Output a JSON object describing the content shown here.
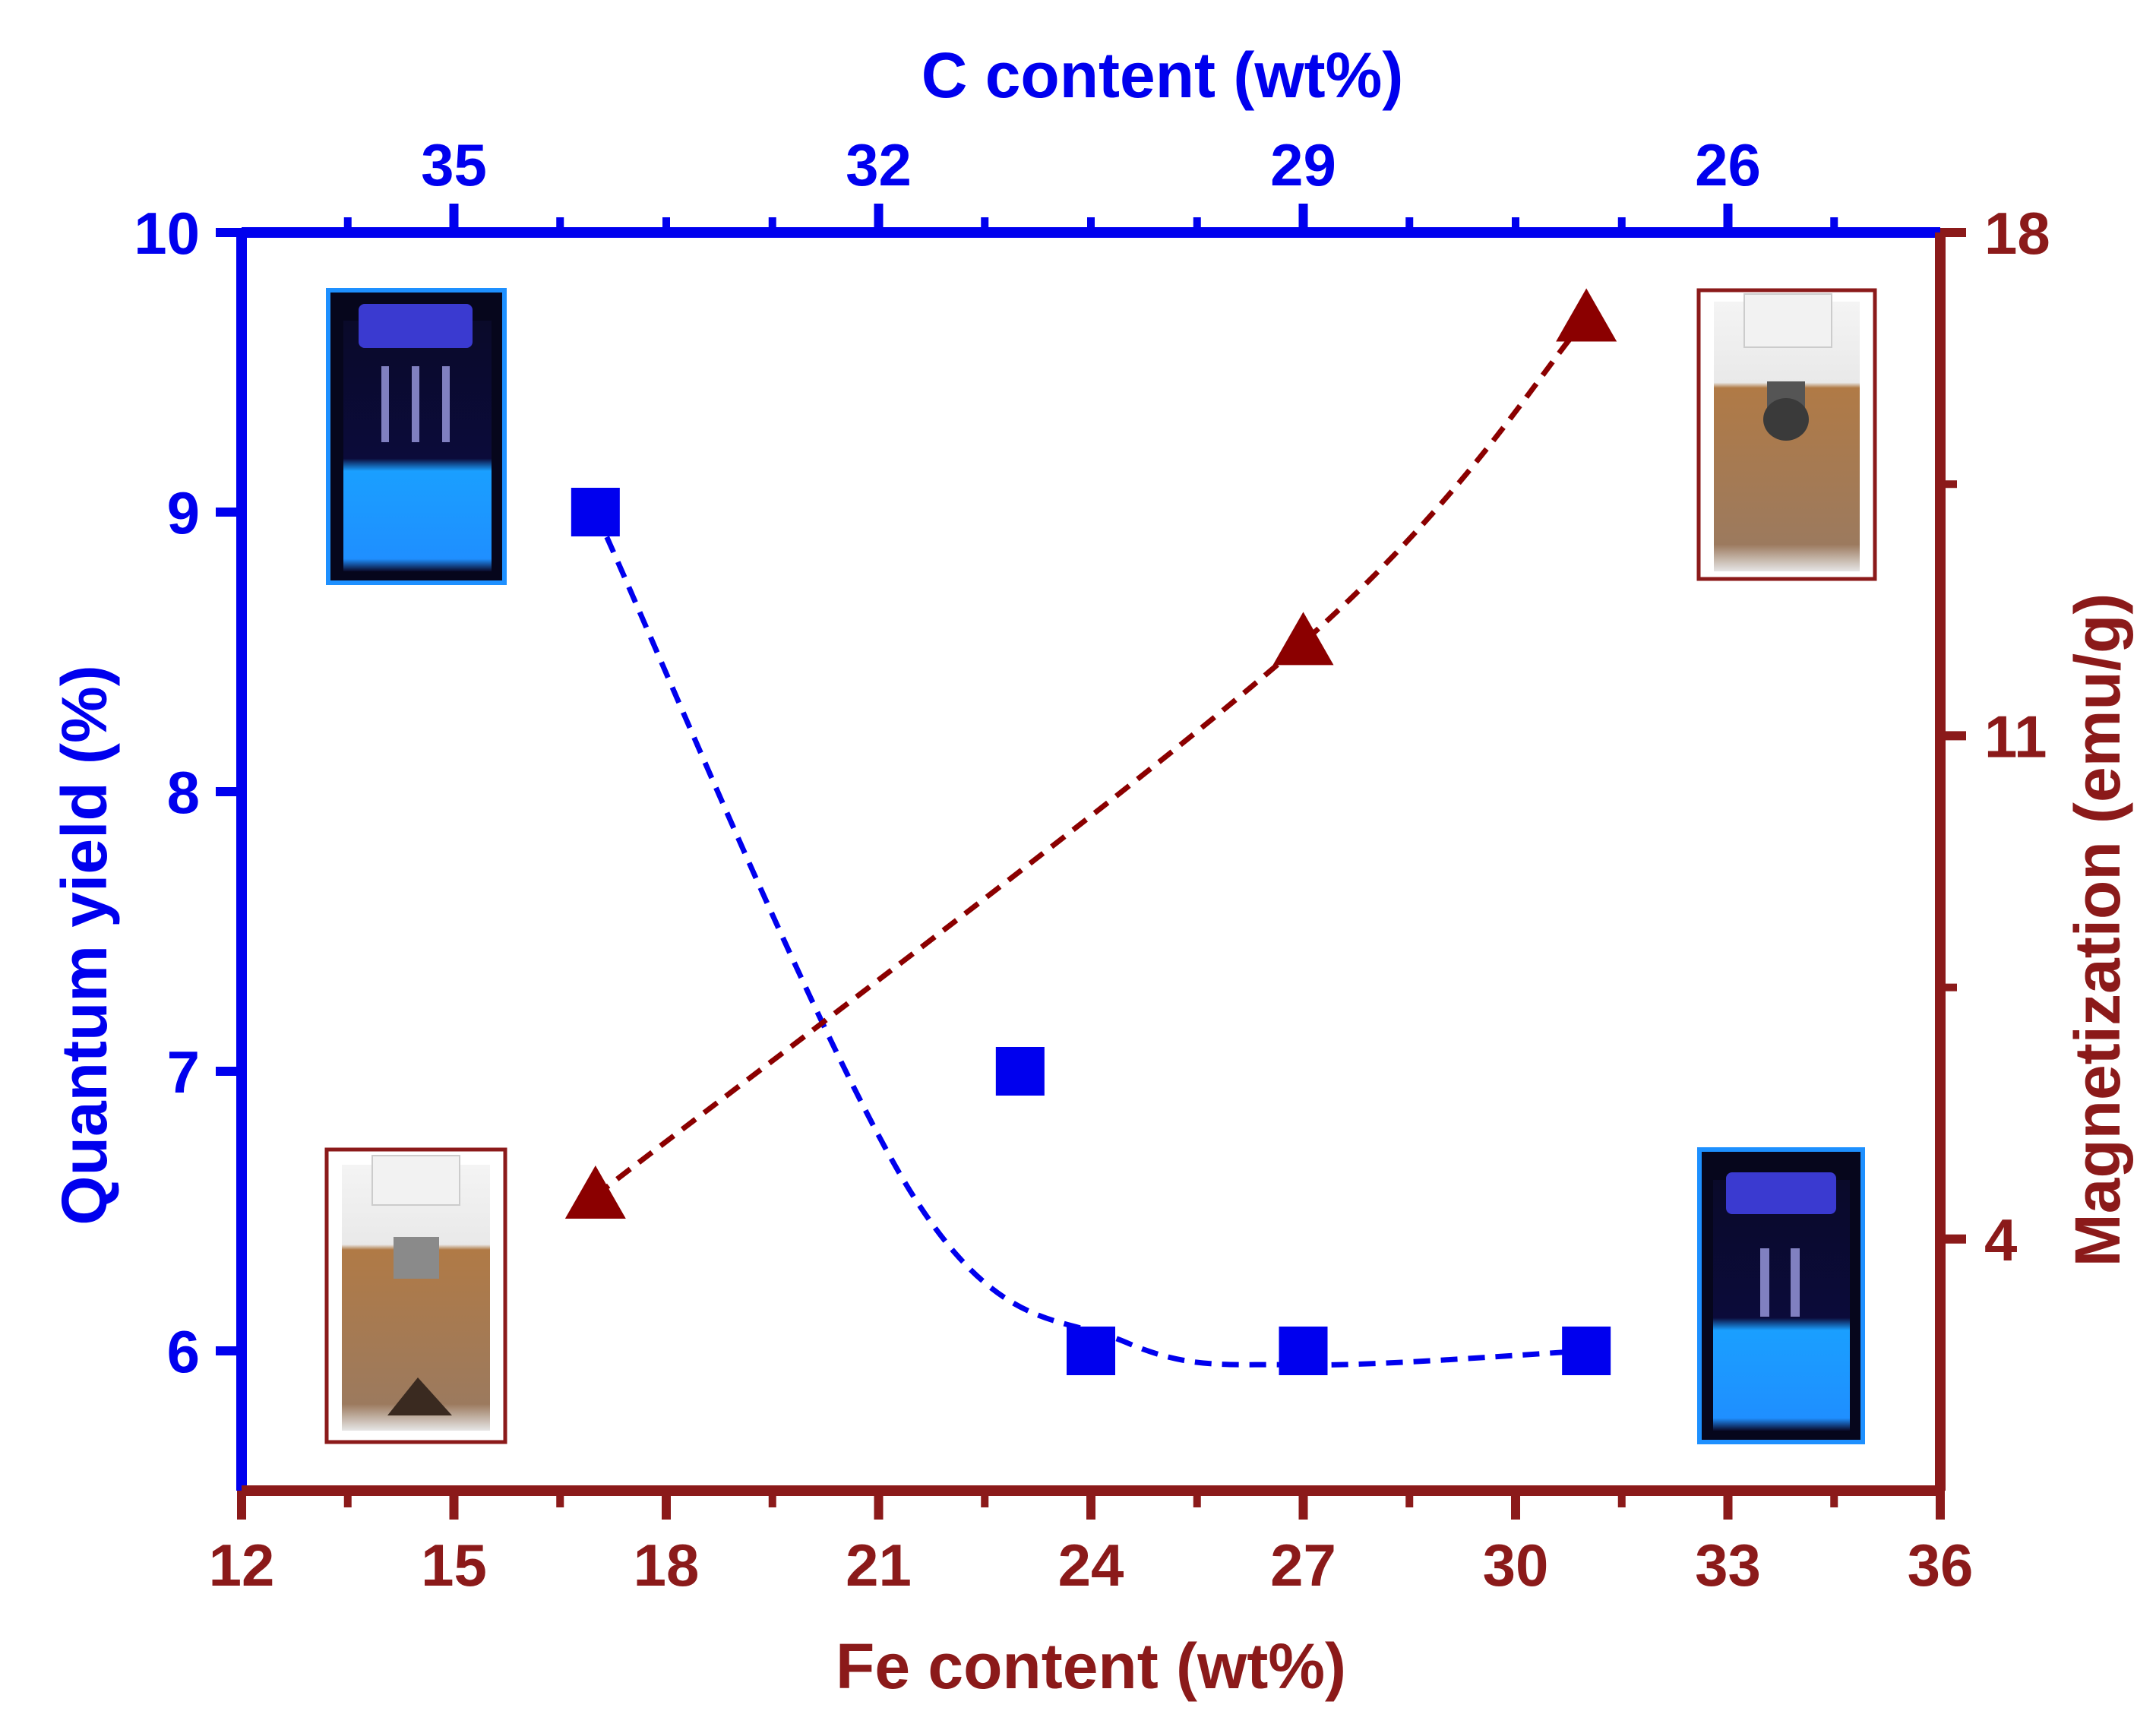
{
  "chart_data": {
    "type": "scatter",
    "x_axis": {
      "label": "Fe content (wt%)",
      "range": [
        12,
        36
      ],
      "ticks": [
        12,
        15,
        18,
        21,
        24,
        27,
        30,
        33,
        36
      ],
      "tick_labels": [
        "12",
        "15",
        "18",
        "21",
        "24",
        "27",
        "30",
        "33",
        "36"
      ]
    },
    "top_axis": {
      "label": "C content (wt%)",
      "ticks": [
        35,
        32,
        29,
        26
      ],
      "tick_labels": [
        "35",
        "32",
        "29",
        "26"
      ],
      "tick_fe_positions": [
        15,
        21,
        27,
        33
      ]
    },
    "y_left": {
      "label": "Quantum yield (%)",
      "range": [
        5.5,
        10
      ],
      "ticks": [
        6,
        7,
        8,
        9,
        10
      ],
      "tick_labels": [
        "6",
        "7",
        "8",
        "9",
        "10"
      ]
    },
    "y_right": {
      "label": "Magnetization (emu/g)",
      "range": [
        0.5,
        18
      ],
      "ticks": [
        4,
        11,
        18
      ],
      "tick_labels": [
        "4",
        "11",
        "18"
      ],
      "minor_ticks": [
        7.5,
        14.5
      ]
    },
    "series": [
      {
        "axis": "left",
        "marker": "square",
        "x": [
          17,
          23,
          24,
          27,
          31
        ],
        "y": [
          9,
          7,
          6,
          6,
          6
        ],
        "color": "#0000ee"
      },
      {
        "axis": "right",
        "marker": "triangle",
        "x": [
          17,
          27,
          31
        ],
        "y": [
          4.6,
          12.3,
          16.8
        ],
        "color": "#8b0000"
      }
    ],
    "colors": {
      "left_axis": "#0000ee",
      "right_axis": "#8b1a1a",
      "top_axis": "#0000ee",
      "bottom_axis": "#8b1a1a"
    }
  },
  "insets": [
    {
      "name": "vial-uv-top-left",
      "border": "#1e90ff"
    },
    {
      "name": "vial-magnet-top-right",
      "border": "#8b1a1a"
    },
    {
      "name": "vial-magnet-bottom-left",
      "border": "#8b1a1a"
    },
    {
      "name": "vial-uv-bottom-right",
      "border": "#1e90ff"
    }
  ]
}
